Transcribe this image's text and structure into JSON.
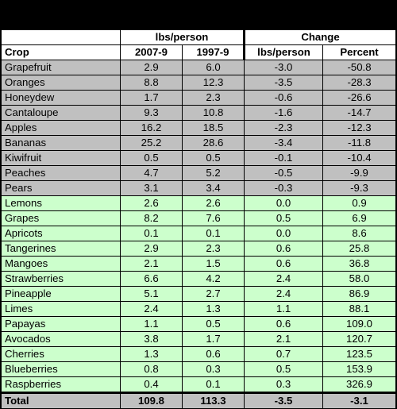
{
  "header": {
    "group_lbs": "lbs/person",
    "group_change": "Change",
    "crop_label": "Crop",
    "col_2007": "2007-9",
    "col_1997": "1997-9",
    "col_change_lbs": "lbs/person",
    "col_percent": "Percent"
  },
  "decline_rows": [
    {
      "crop": "Grapefruit",
      "y2007": "2.9",
      "y1997": "6.0",
      "change": "-3.0",
      "percent": "-50.8"
    },
    {
      "crop": "Oranges",
      "y2007": "8.8",
      "y1997": "12.3",
      "change": "-3.5",
      "percent": "-28.3"
    },
    {
      "crop": "Honeydew",
      "y2007": "1.7",
      "y1997": "2.3",
      "change": "-0.6",
      "percent": "-26.6"
    },
    {
      "crop": "Cantaloupe",
      "y2007": "9.3",
      "y1997": "10.8",
      "change": "-1.6",
      "percent": "-14.7"
    },
    {
      "crop": "Apples",
      "y2007": "16.2",
      "y1997": "18.5",
      "change": "-2.3",
      "percent": "-12.3"
    },
    {
      "crop": "Bananas",
      "y2007": "25.2",
      "y1997": "28.6",
      "change": "-3.4",
      "percent": "-11.8"
    },
    {
      "crop": "Kiwifruit",
      "y2007": "0.5",
      "y1997": "0.5",
      "change": "-0.1",
      "percent": "-10.4"
    },
    {
      "crop": "Peaches",
      "y2007": "4.7",
      "y1997": "5.2",
      "change": "-0.5",
      "percent": "-9.9"
    },
    {
      "crop": "Pears",
      "y2007": "3.1",
      "y1997": "3.4",
      "change": "-0.3",
      "percent": "-9.3"
    }
  ],
  "increase_rows": [
    {
      "crop": "Lemons",
      "y2007": "2.6",
      "y1997": "2.6",
      "change": "0.0",
      "percent": "0.9"
    },
    {
      "crop": "Grapes",
      "y2007": "8.2",
      "y1997": "7.6",
      "change": "0.5",
      "percent": "6.9"
    },
    {
      "crop": "Apricots",
      "y2007": "0.1",
      "y1997": "0.1",
      "change": "0.0",
      "percent": "8.6"
    },
    {
      "crop": "Tangerines",
      "y2007": "2.9",
      "y1997": "2.3",
      "change": "0.6",
      "percent": "25.8"
    },
    {
      "crop": "Mangoes",
      "y2007": "2.1",
      "y1997": "1.5",
      "change": "0.6",
      "percent": "36.8"
    },
    {
      "crop": "Strawberries",
      "y2007": "6.6",
      "y1997": "4.2",
      "change": "2.4",
      "percent": "58.0"
    },
    {
      "crop": "Pineapple",
      "y2007": "5.1",
      "y1997": "2.7",
      "change": "2.4",
      "percent": "86.9"
    },
    {
      "crop": "Limes",
      "y2007": "2.4",
      "y1997": "1.3",
      "change": "1.1",
      "percent": "88.1"
    },
    {
      "crop": "Papayas",
      "y2007": "1.1",
      "y1997": "0.5",
      "change": "0.6",
      "percent": "109.0"
    },
    {
      "crop": "Avocados",
      "y2007": "3.8",
      "y1997": "1.7",
      "change": "2.1",
      "percent": "120.7"
    },
    {
      "crop": "Cherries",
      "y2007": "1.3",
      "y1997": "0.6",
      "change": "0.7",
      "percent": "123.5"
    },
    {
      "crop": "Blueberries",
      "y2007": "0.8",
      "y1997": "0.3",
      "change": "0.5",
      "percent": "153.9"
    },
    {
      "crop": "Raspberries",
      "y2007": "0.4",
      "y1997": "0.1",
      "change": "0.3",
      "percent": "326.9"
    }
  ],
  "total": {
    "crop": "Total",
    "y2007": "109.8",
    "y1997": "113.3",
    "change": "-3.5",
    "percent": "-3.1"
  },
  "colors": {
    "decline_bg": "#c0c0c0",
    "increase_bg": "#ccffcc",
    "header_bg": "#ffffff",
    "frame_bg": "#000000"
  }
}
